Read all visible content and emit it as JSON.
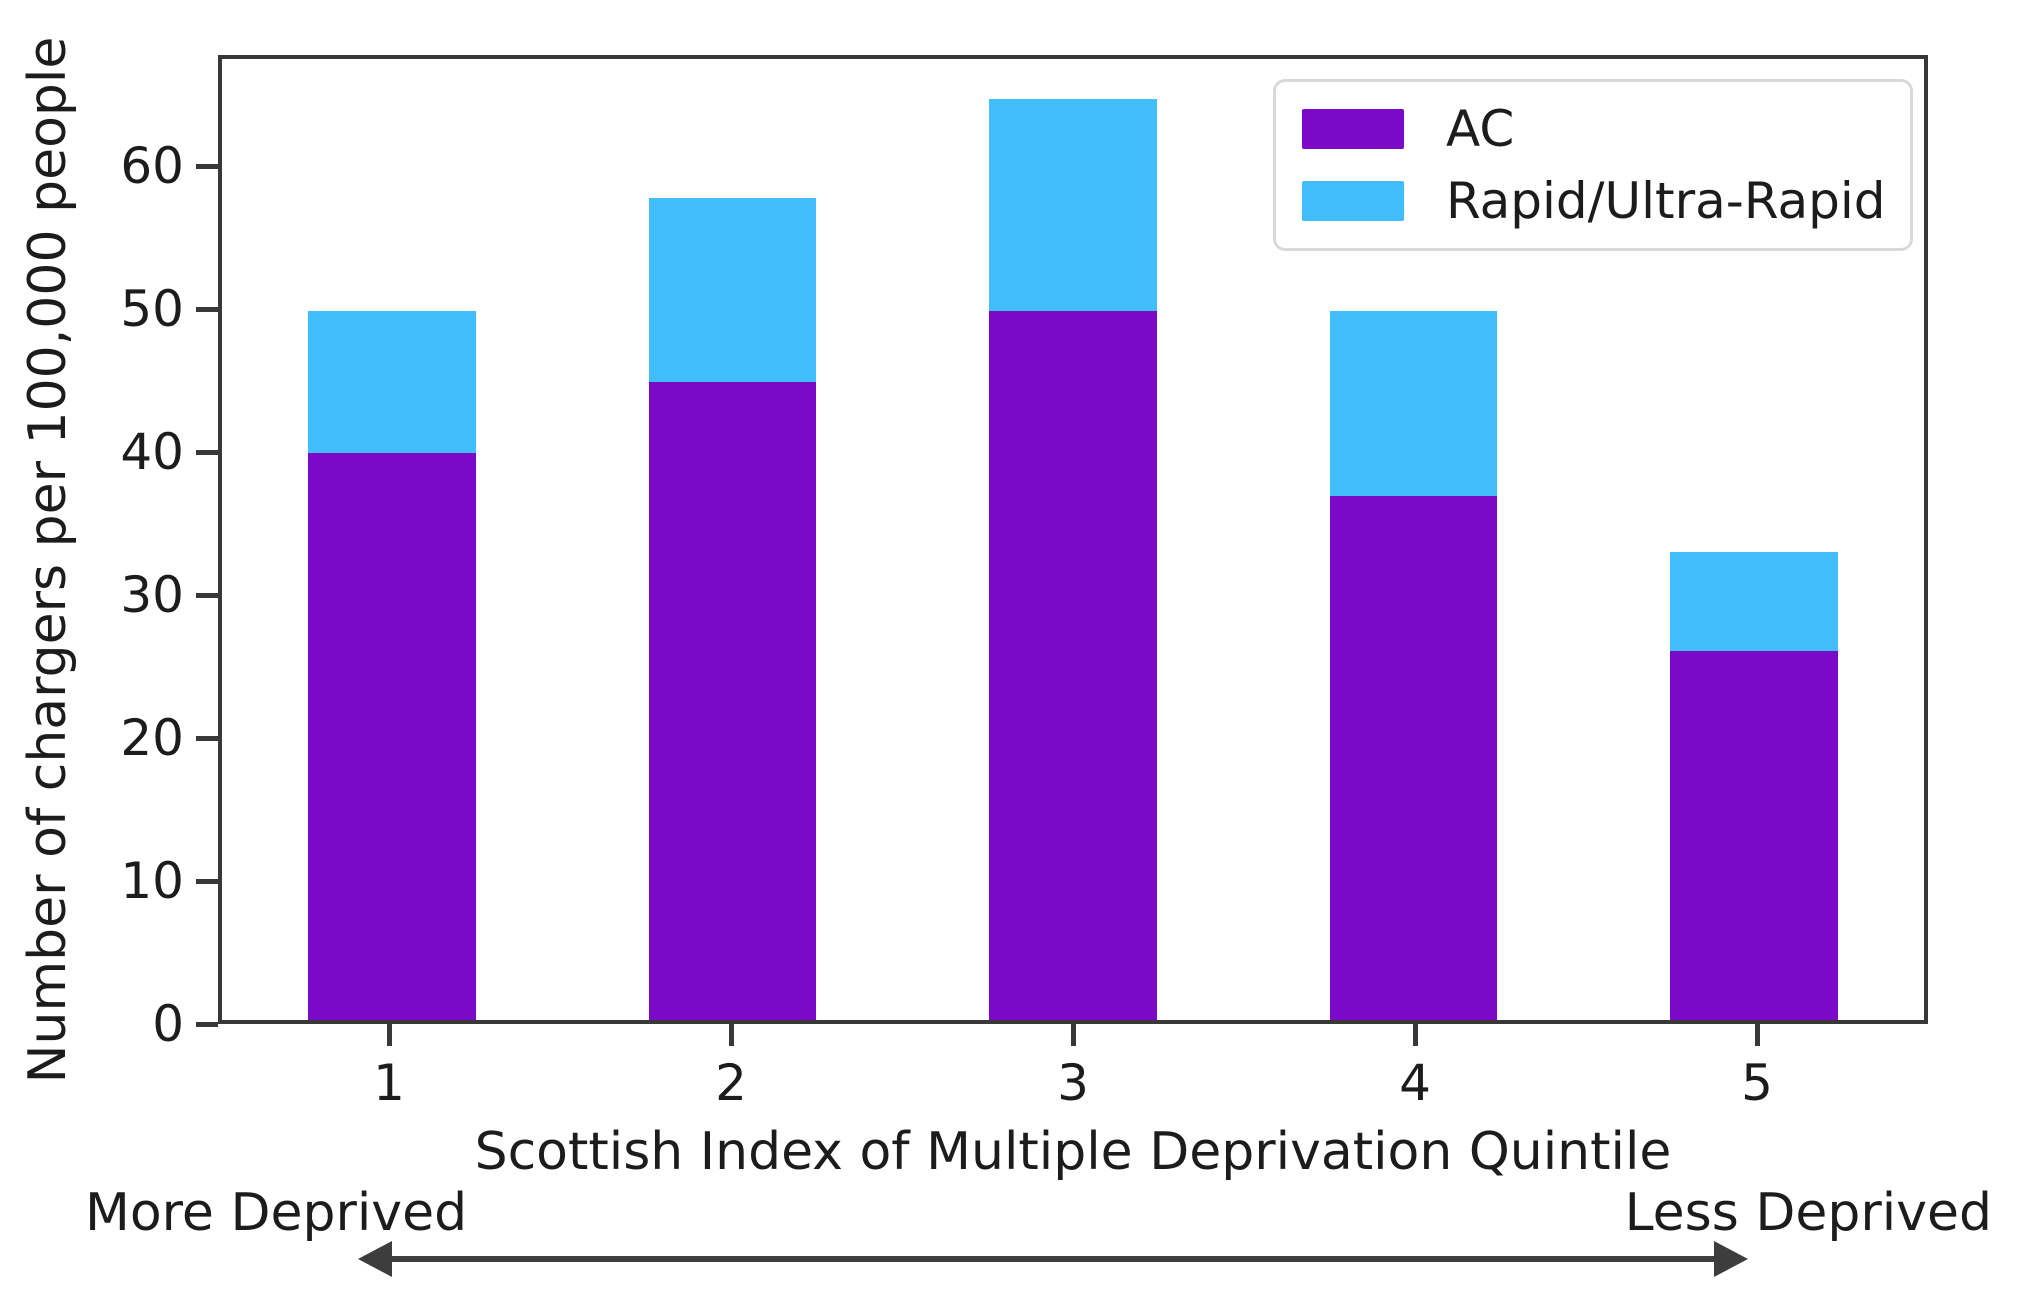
{
  "chart_data": {
    "type": "bar",
    "stacked": true,
    "title": "",
    "xlabel": "Scottish Index of Multiple Deprivation Quintile",
    "ylabel": "Number of chargers per 100,000 people",
    "categories": [
      "1",
      "2",
      "3",
      "4",
      "5"
    ],
    "series": [
      {
        "name": "AC",
        "color": "#7a0ac8",
        "values": [
          40,
          45,
          50,
          37,
          26
        ]
      },
      {
        "name": "Rapid/Ultra-Rapid",
        "color": "#41bdfb",
        "values": [
          10,
          13,
          15,
          13,
          7
        ]
      }
    ],
    "stack_totals": [
      50,
      58,
      65,
      50,
      33
    ],
    "ylim": [
      0,
      67.8
    ],
    "yticks": [
      0,
      10,
      20,
      30,
      40,
      50,
      60
    ],
    "grid": false,
    "legend_position": "upper right",
    "x_axis_annotations": {
      "left": "More Deprived",
      "right": "Less Deprived",
      "arrow": "double-headed horizontal arrow"
    }
  },
  "colors": {
    "axis": "#383838",
    "text": "#1c1c1c",
    "arrow": "#3d3d3d",
    "legend_border": "#d9d9d9",
    "background": "#ffffff"
  }
}
